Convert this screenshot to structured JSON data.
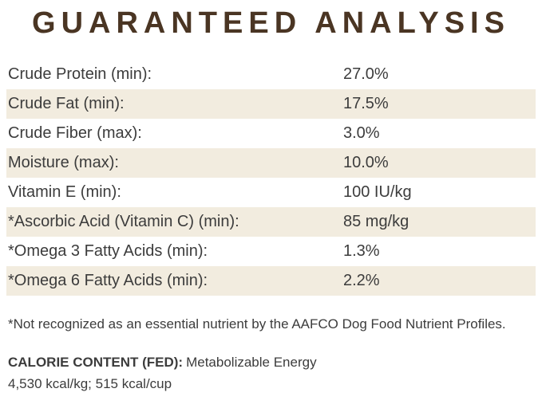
{
  "title": "GUARANTEED ANALYSIS",
  "analysis_table": {
    "rows": [
      {
        "label": "Crude Protein (min):",
        "value": "27.0%"
      },
      {
        "label": "Crude Fat (min):",
        "value": "17.5%"
      },
      {
        "label": "Crude Fiber (max):",
        "value": "3.0%"
      },
      {
        "label": "Moisture (max):",
        "value": "10.0%"
      },
      {
        "label": "Vitamin E (min):",
        "value": "100 IU/kg"
      },
      {
        "label": "*Ascorbic Acid (Vitamin C) (min):",
        "value": "85 mg/kg"
      },
      {
        "label": "*Omega 3 Fatty Acids (min):",
        "value": "1.3%"
      },
      {
        "label": "*Omega 6 Fatty Acids (min):",
        "value": "2.2%"
      }
    ]
  },
  "footnote": "*Not recognized as an essential nutrient by the AAFCO Dog Food Nutrient Profiles.",
  "calorie_content": {
    "heading": "CALORIE CONTENT (FED):",
    "description": "Metabolizable Energy",
    "values": "4,530 kcal/kg; 515 kcal/cup"
  },
  "colors": {
    "title_brown": "#4a3523",
    "row_shade": "#f2ecdf",
    "body_text": "#3c3c3c"
  }
}
